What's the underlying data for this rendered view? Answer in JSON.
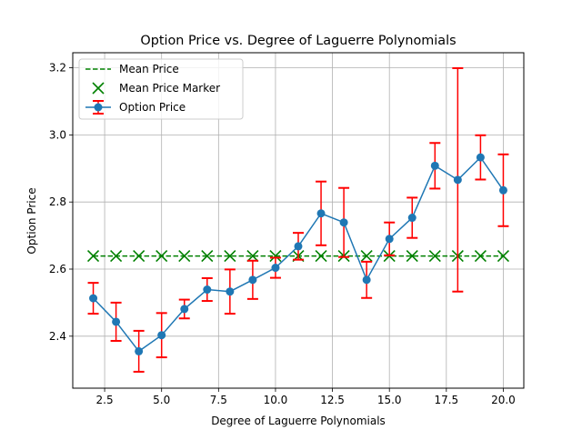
{
  "chart_data": {
    "type": "line",
    "title": "Option Price vs. Degree of Laguerre Polynomials",
    "xlabel": "Degree of Laguerre Polynomials",
    "ylabel": "Option Price",
    "xlim": [
      1.1,
      20.9
    ],
    "ylim": [
      2.245,
      3.245
    ],
    "xticks": [
      2.5,
      5.0,
      7.5,
      10.0,
      12.5,
      15.0,
      17.5,
      20.0
    ],
    "xtick_labels": [
      "2.5",
      "5.0",
      "7.5",
      "10.0",
      "12.5",
      "15.0",
      "17.5",
      "20.0"
    ],
    "yticks": [
      2.4,
      2.6,
      2.8,
      3.0,
      3.2
    ],
    "ytick_labels": [
      "2.4",
      "2.6",
      "2.8",
      "3.0",
      "3.2"
    ],
    "grid": true,
    "legend_position": "upper left",
    "x": [
      2,
      3,
      4,
      5,
      6,
      7,
      8,
      9,
      10,
      11,
      12,
      13,
      14,
      15,
      16,
      17,
      18,
      19,
      20
    ],
    "series": [
      {
        "name": "Option Price",
        "kind": "line-markers-errorbars",
        "color": "#1f77b4",
        "error_color": "#ff0000",
        "values": [
          2.513,
          2.443,
          2.355,
          2.403,
          2.481,
          2.539,
          2.533,
          2.568,
          2.604,
          2.668,
          2.766,
          2.739,
          2.568,
          2.69,
          2.753,
          2.908,
          2.866,
          2.933,
          2.835
        ],
        "errors": [
          0.046,
          0.057,
          0.061,
          0.066,
          0.028,
          0.034,
          0.066,
          0.057,
          0.03,
          0.04,
          0.095,
          0.103,
          0.054,
          0.049,
          0.06,
          0.068,
          0.333,
          0.066,
          0.107
        ]
      },
      {
        "name": "Mean Price",
        "kind": "hline-dashed",
        "color": "#008000",
        "value": 2.639
      },
      {
        "name": "Mean Price Marker",
        "kind": "x-markers",
        "color": "#008000",
        "value": 2.639
      }
    ]
  }
}
